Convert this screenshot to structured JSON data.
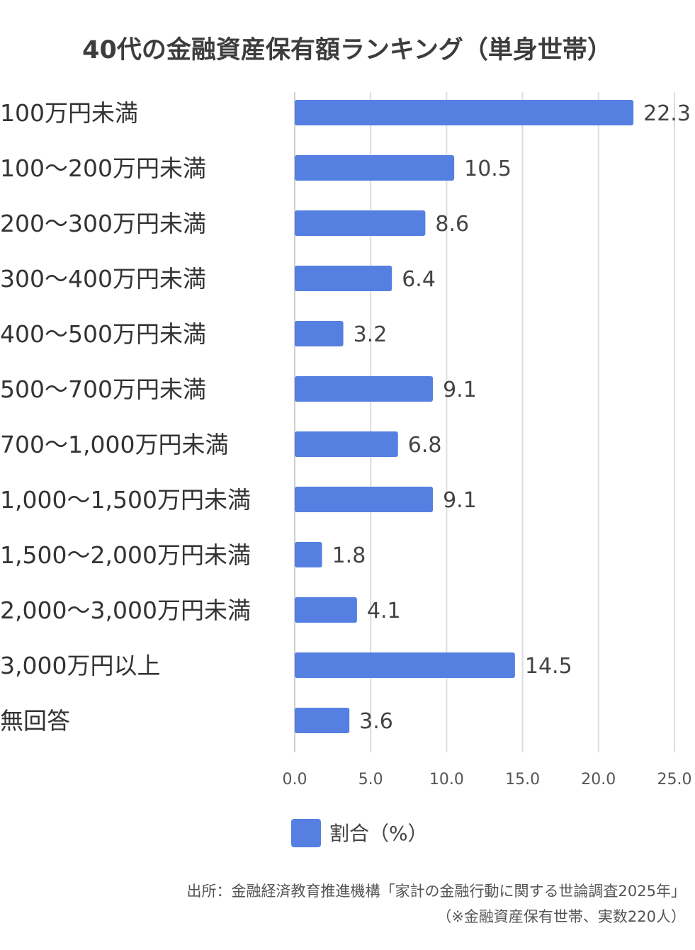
{
  "chart_data": {
    "type": "bar",
    "orientation": "horizontal",
    "title": "40代の金融資産保有額ランキング（単身世帯）",
    "categories": [
      "100万円未満",
      "100～200万円未満",
      "200～300万円未満",
      "300～400万円未満",
      "400～500万円未満",
      "500～700万円未満",
      "700～1,000万円未満",
      "1,000～1,500万円未満",
      "1,500～2,000万円未満",
      "2,000～3,000万円未満",
      "3,000万円以上",
      "無回答"
    ],
    "series": [
      {
        "name": "割合（%）",
        "values": [
          22.3,
          10.5,
          8.6,
          6.4,
          3.2,
          9.1,
          6.8,
          9.1,
          1.8,
          4.1,
          14.5,
          3.6
        ],
        "value_labels": [
          "22.3",
          "10.5",
          "8.6",
          "6.4",
          "3.2",
          "9.1",
          "6.8",
          "9.1",
          "1.8",
          "4.1",
          "14.5",
          "3.6"
        ],
        "color": "#5580e2"
      }
    ],
    "xlim": [
      0,
      25
    ],
    "x_ticks": [
      "0.0",
      "5.0",
      "10.0",
      "15.0",
      "20.0",
      "25.0"
    ],
    "grid": true,
    "legend_position": "bottom"
  },
  "source": {
    "line1": "出所：金融経済教育推進機構「家計の金融行動に関する世論調査2025年」",
    "line2": "（※金融資産保有世帯、実数220人）"
  }
}
